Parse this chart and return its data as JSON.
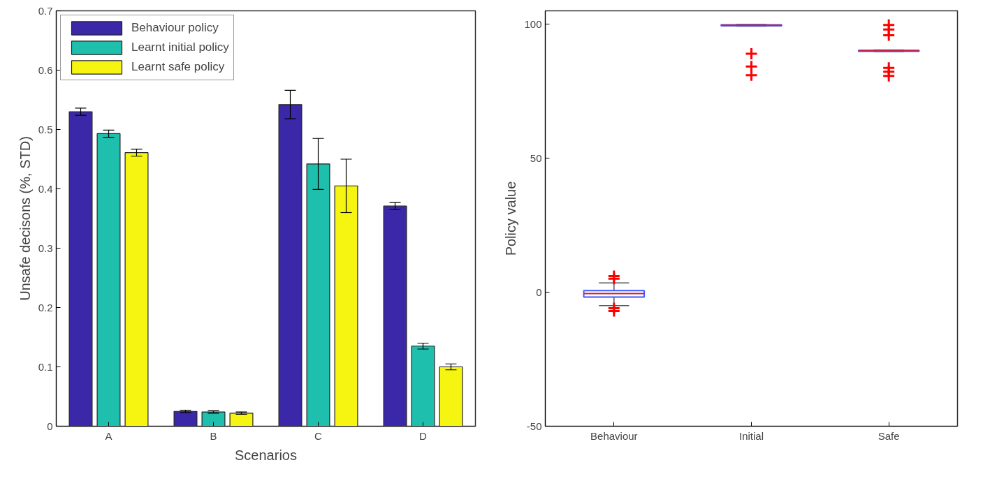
{
  "chart_data": [
    {
      "type": "bar",
      "xlabel": "Scenarios",
      "ylabel": "Unsafe decisons (%, STD)",
      "categories": [
        "A",
        "B",
        "C",
        "D"
      ],
      "ylim": [
        0,
        0.7
      ],
      "yticks": [
        0,
        0.1,
        0.2,
        0.3,
        0.4,
        0.5,
        0.6,
        0.7
      ],
      "grid": false,
      "legend": "top left",
      "series": [
        {
          "name": "Behaviour policy",
          "color": "#3b28a8",
          "values": [
            0.53,
            0.025,
            0.542,
            0.371
          ],
          "errors": [
            0.006,
            0.002,
            0.024,
            0.006
          ]
        },
        {
          "name": "Learnt initial policy",
          "color": "#1fbfae",
          "values": [
            0.493,
            0.024,
            0.442,
            0.135
          ],
          "errors": [
            0.006,
            0.002,
            0.043,
            0.005
          ]
        },
        {
          "name": "Learnt safe policy",
          "color": "#f5f511",
          "values": [
            0.461,
            0.022,
            0.405,
            0.1
          ],
          "errors": [
            0.006,
            0.002,
            0.045,
            0.005
          ]
        }
      ]
    },
    {
      "type": "box",
      "ylabel": "Policy value",
      "categories": [
        "Behaviour",
        "Initial",
        "Safe"
      ],
      "ylim": [
        -50,
        105
      ],
      "yticks": [
        -50,
        0,
        50,
        100
      ],
      "grid": false,
      "marker": "cross",
      "series": [
        {
          "color": "#3b5bff",
          "boxes": [
            {
              "low": -5,
              "q1": -1.8,
              "median": -0.5,
              "q3": 0.6,
              "high": 3.5,
              "outliers": [
                5,
                6,
                -6,
                -7
              ]
            },
            {
              "low": 99.3,
              "q1": 99.4,
              "median": 99.6,
              "q3": 99.8,
              "high": 99.9,
              "outliers": [
                89,
                84.2,
                81
              ]
            },
            {
              "low": 89.8,
              "q1": 89.9,
              "median": 90.1,
              "q3": 90.3,
              "high": 90.4,
              "outliers": [
                99.7,
                98,
                95.9,
                83.7,
                82.3,
                80.7
              ]
            }
          ]
        }
      ]
    }
  ]
}
